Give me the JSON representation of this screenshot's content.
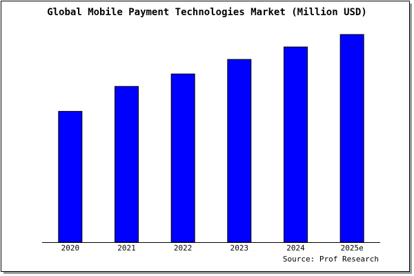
{
  "chart_data": {
    "type": "bar",
    "title": "Global Mobile Payment Technologies Market (Million USD)",
    "categories": [
      "2020",
      "2021",
      "2022",
      "2023",
      "2024",
      "2025e"
    ],
    "values": [
      63,
      75,
      81,
      88,
      94,
      100
    ],
    "color": "#0000ff",
    "ylim": [
      0,
      100
    ],
    "source": "Source: Prof Research"
  }
}
